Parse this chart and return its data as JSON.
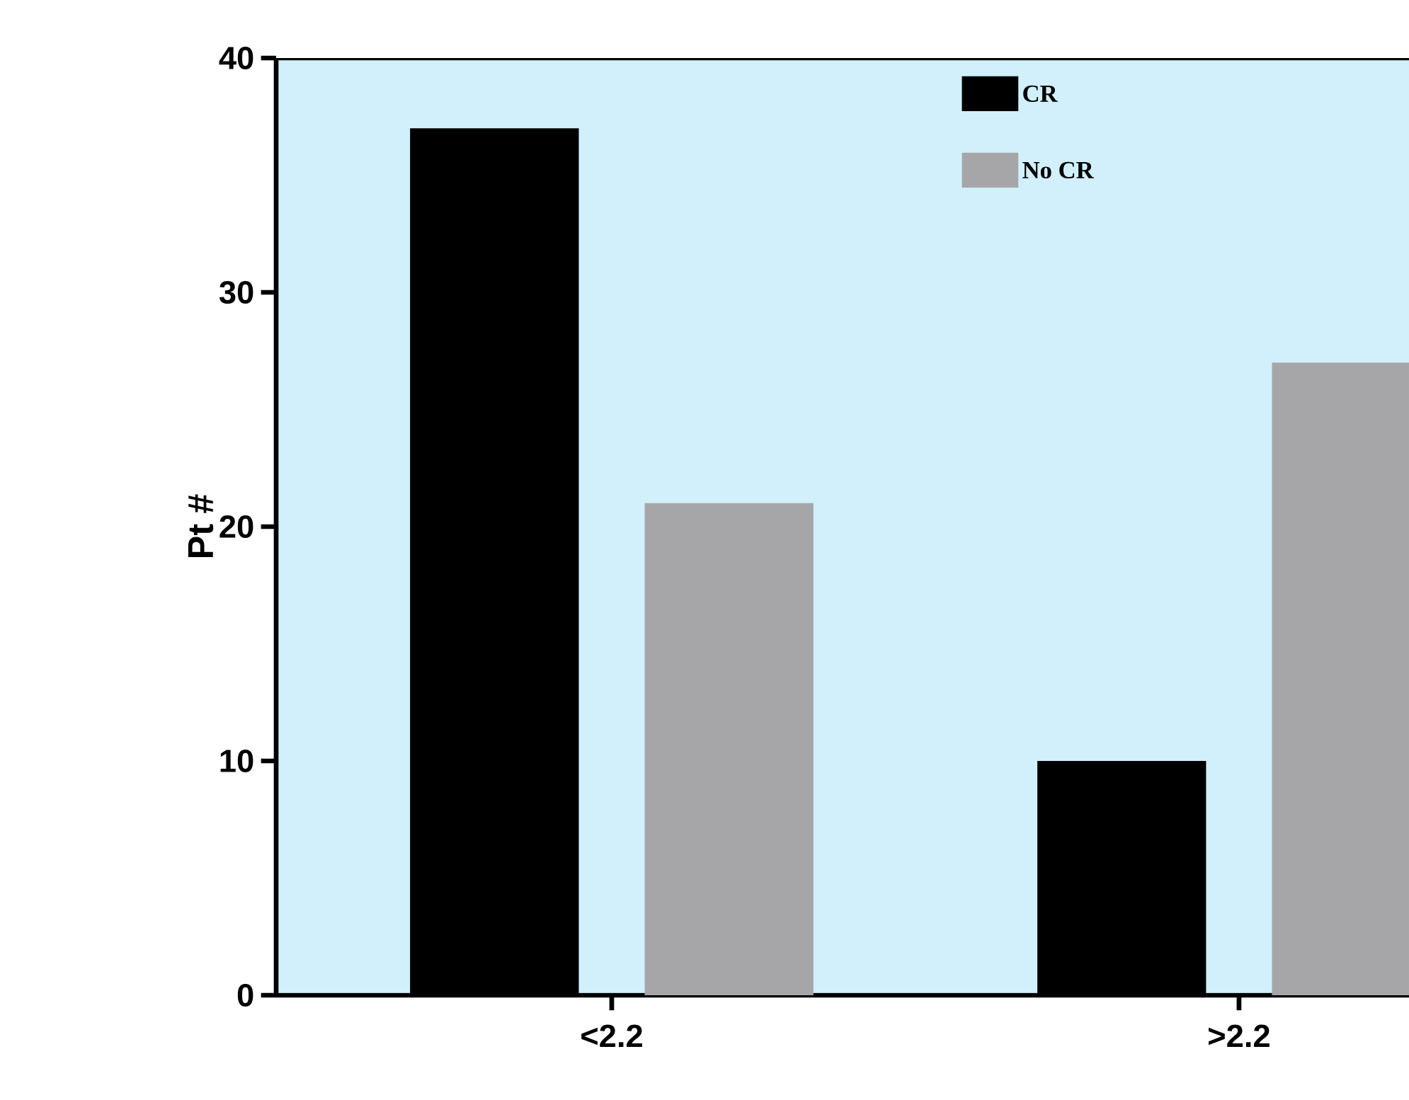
{
  "chart_data": {
    "type": "bar",
    "ylabel": "Pt #",
    "categories": [
      "<2.2",
      ">2.2"
    ],
    "series": [
      {
        "name": "CR",
        "color": "#000000",
        "values": [
          37,
          10
        ]
      },
      {
        "name": "No CR",
        "color": "#a6a6a8",
        "values": [
          21,
          27
        ]
      }
    ],
    "ylim": [
      0,
      40
    ],
    "yticks": [
      0,
      10,
      20,
      30,
      40
    ],
    "legend": "top right",
    "grid": false
  }
}
